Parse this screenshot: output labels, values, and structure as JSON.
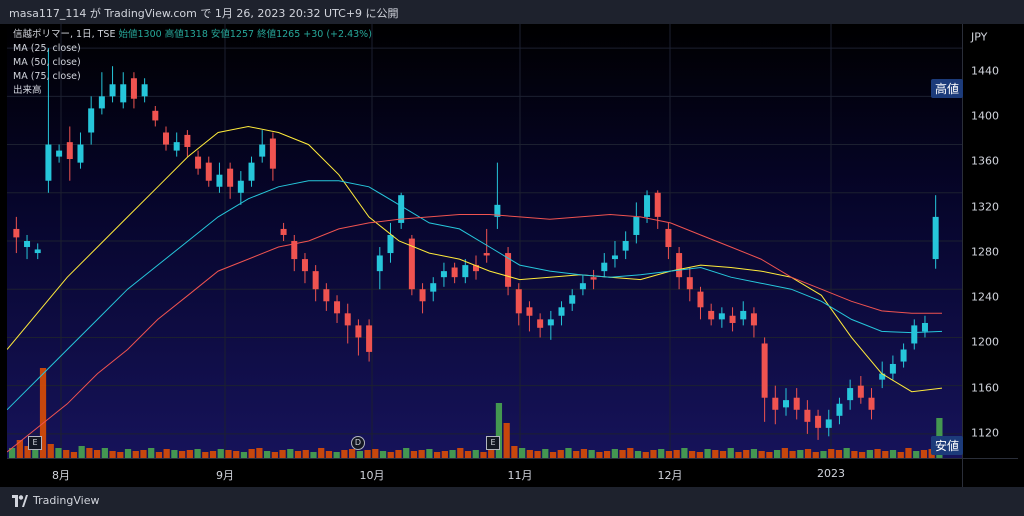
{
  "header": {
    "title": "masa117_114 が TradingView.com で 1月 26, 2023 20:32 UTC+9 に公開"
  },
  "legend": {
    "symbol": "信越ポリマー, 1日, TSE",
    "ohlc_text": "始値1300 高値1318 安値1257 終値1265 +30 (+2.43%)",
    "ma25": "MA (25, close)",
    "ma50": "MA (50, close)",
    "ma75": "MA (75, close)",
    "volume": "出来高"
  },
  "price_axis": {
    "currency": "JPY",
    "ticks": [
      "1440",
      "1400",
      "1360",
      "1320",
      "1280",
      "1240",
      "1200",
      "1160",
      "1120"
    ],
    "high_tag": "高値",
    "low_tag": "安値"
  },
  "time_axis": {
    "labels": [
      "8月",
      "9月",
      "10月",
      "11月",
      "12月",
      "2023"
    ]
  },
  "markers": {
    "e1": "E",
    "d1": "D",
    "e2": "E"
  },
  "footer": {
    "brand": "TradingView"
  },
  "colors": {
    "up": "#26c6da",
    "down": "#ef5350",
    "ma25": "#ffeb3b",
    "ma50": "#26c6da",
    "ma75": "#ef5350",
    "vol_up": "#4caf50",
    "vol_down": "#e65100",
    "tag_bg": "#1c3b7a"
  },
  "chart_data": {
    "type": "candlestick",
    "title": "信越ポリマー, 1日, TSE",
    "ylim": [
      1100,
      1460
    ],
    "y_ticks": [
      1120,
      1160,
      1200,
      1240,
      1280,
      1320,
      1360,
      1400,
      1440
    ],
    "x_labels": [
      "8月",
      "9月",
      "10月",
      "11月",
      "12月",
      "2023"
    ],
    "series": [
      {
        "name": "MA (25, close)",
        "values": [
          1190,
          1220,
          1250,
          1275,
          1300,
          1325,
          1350,
          1370,
          1375,
          1370,
          1360,
          1335,
          1300,
          1280,
          1270,
          1265,
          1255,
          1248,
          1250,
          1252,
          1250,
          1248,
          1255,
          1260,
          1258,
          1255,
          1250,
          1235,
          1200,
          1170,
          1155,
          1158
        ]
      },
      {
        "name": "MA (50, close)",
        "values": [
          1140,
          1165,
          1190,
          1215,
          1240,
          1260,
          1280,
          1300,
          1315,
          1325,
          1330,
          1330,
          1325,
          1310,
          1295,
          1290,
          1275,
          1260,
          1255,
          1252,
          1250,
          1252,
          1255,
          1258,
          1250,
          1245,
          1240,
          1230,
          1215,
          1205,
          1204,
          1205
        ]
      },
      {
        "name": "MA (75, close)",
        "values": [
          1105,
          1125,
          1145,
          1170,
          1190,
          1215,
          1235,
          1255,
          1265,
          1275,
          1280,
          1290,
          1295,
          1298,
          1300,
          1302,
          1302,
          1300,
          1298,
          1300,
          1302,
          1300,
          1295,
          1285,
          1275,
          1265,
          1250,
          1240,
          1230,
          1222,
          1220,
          1220
        ]
      }
    ]
  }
}
